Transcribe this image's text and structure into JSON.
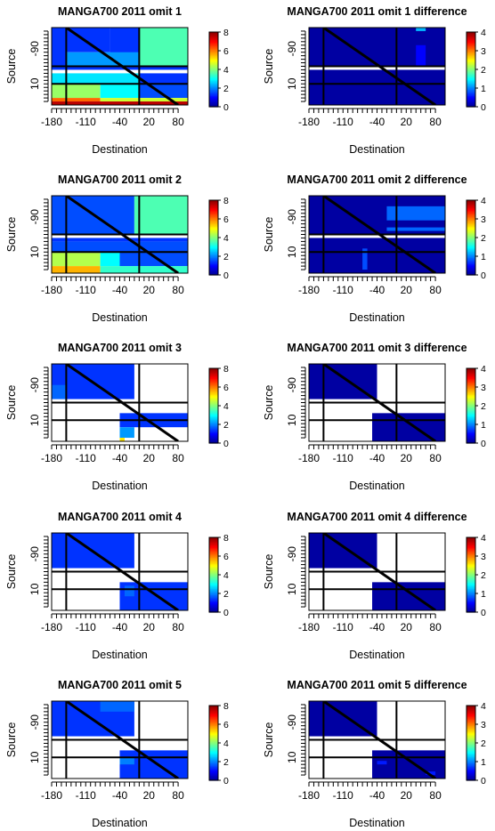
{
  "colorbar_colors": [
    "#00008b",
    "#0000ff",
    "#0080ff",
    "#00ffff",
    "#80ff80",
    "#ffff00",
    "#ff8000",
    "#ff0000",
    "#8b0000"
  ],
  "chart_data": [
    {
      "type": "heatmap",
      "title": "MANGA700 2011 omit 1",
      "xlabel": "Destination",
      "ylabel": "Source",
      "xticks": [
        "-180",
        "-110",
        "-40",
        "20",
        "80"
      ],
      "yticks": [
        "-90",
        "10"
      ],
      "colorbar": {
        "ticks": [
          "0",
          "2",
          "4",
          "6",
          "8"
        ],
        "range": [
          0,
          8
        ]
      },
      "lines": {
        "vertical_x": [
          -150,
          0
        ],
        "horizontal_y": [
          -40,
          10
        ],
        "diagonal": true
      },
      "cells": [
        {
          "x0": -180,
          "x1": -150,
          "y0": -150,
          "y1": -40,
          "v": 1.4
        },
        {
          "x0": -150,
          "x1": -60,
          "y0": -150,
          "y1": -80,
          "v": 1.4
        },
        {
          "x0": -60,
          "x1": 0,
          "y0": -150,
          "y1": -70,
          "v": 1.4
        },
        {
          "x0": 0,
          "x1": 100,
          "y0": -150,
          "y1": -40,
          "v": 3.6
        },
        {
          "x0": -150,
          "x1": 0,
          "y0": -80,
          "y1": -40,
          "v": 2.2
        },
        {
          "x0": -180,
          "x1": 100,
          "y0": -40,
          "y1": -30,
          "v": 1.4
        },
        {
          "x0": -180,
          "x1": 0,
          "y0": -20,
          "y1": 10,
          "v": 2.8
        },
        {
          "x0": 0,
          "x1": 100,
          "y0": -20,
          "y1": 10,
          "v": 1.4
        },
        {
          "x0": -180,
          "x1": -80,
          "y0": 10,
          "y1": 50,
          "v": 4.2
        },
        {
          "x0": -80,
          "x1": 0,
          "y0": 10,
          "y1": 50,
          "v": 3.0
        },
        {
          "x0": 0,
          "x1": 100,
          "y0": 10,
          "y1": 50,
          "v": 1.6
        },
        {
          "x0": -180,
          "x1": -80,
          "y0": 50,
          "y1": 60,
          "v": 6.2
        },
        {
          "x0": -80,
          "x1": 100,
          "y0": 50,
          "y1": 60,
          "v": 4.6
        },
        {
          "x0": -180,
          "x1": 100,
          "y0": 60,
          "y1": 70,
          "v": 7.6
        }
      ]
    },
    {
      "type": "heatmap",
      "title": "MANGA700 2011 omit 1 difference",
      "xlabel": "Destination",
      "ylabel": "Source",
      "xticks": [
        "-180",
        "-110",
        "-40",
        "20",
        "80"
      ],
      "yticks": [
        "-90",
        "10"
      ],
      "colorbar": {
        "ticks": [
          "0",
          "1",
          "2",
          "3",
          "4"
        ],
        "range": [
          0,
          4
        ]
      },
      "lines": {
        "vertical_x": [
          -150,
          0
        ],
        "horizontal_y": [
          -40,
          10
        ],
        "diagonal": true
      },
      "cells": [
        {
          "x0": -180,
          "x1": 100,
          "y0": -150,
          "y1": -40,
          "v": 0.1
        },
        {
          "x0": 40,
          "x1": 60,
          "y0": -150,
          "y1": -140,
          "v": 1.2
        },
        {
          "x0": 40,
          "x1": 60,
          "y0": -100,
          "y1": -40,
          "v": 0.5
        },
        {
          "x0": -180,
          "x1": 100,
          "y0": -30,
          "y1": 70,
          "v": 0.1
        }
      ]
    },
    {
      "type": "heatmap",
      "title": "MANGA700 2011 omit 2",
      "xlabel": "Destination",
      "ylabel": "Source",
      "xticks": [
        "-180",
        "-110",
        "-40",
        "20",
        "80"
      ],
      "yticks": [
        "-90",
        "10"
      ],
      "colorbar": {
        "ticks": [
          "0",
          "2",
          "4",
          "6",
          "8"
        ],
        "range": [
          0,
          8
        ]
      },
      "lines": {
        "vertical_x": [
          -150,
          0
        ],
        "horizontal_y": [
          -40,
          10
        ],
        "diagonal": true
      },
      "cells": [
        {
          "x0": -180,
          "x1": -10,
          "y0": -150,
          "y1": -40,
          "v": 1.6
        },
        {
          "x0": -10,
          "x1": 100,
          "y0": -150,
          "y1": -40,
          "v": 3.6
        },
        {
          "x0": -180,
          "x1": 100,
          "y0": -30,
          "y1": -20,
          "v": 1.4
        },
        {
          "x0": -180,
          "x1": 100,
          "y0": -20,
          "y1": 10,
          "v": 1.6
        },
        {
          "x0": -180,
          "x1": -80,
          "y0": 10,
          "y1": 50,
          "v": 4.4
        },
        {
          "x0": -80,
          "x1": -40,
          "y0": 10,
          "y1": 50,
          "v": 3.0
        },
        {
          "x0": -40,
          "x1": 100,
          "y0": 10,
          "y1": 50,
          "v": 1.6
        },
        {
          "x0": -180,
          "x1": -80,
          "y0": 50,
          "y1": 70,
          "v": 5.6
        },
        {
          "x0": -80,
          "x1": 100,
          "y0": 50,
          "y1": 70,
          "v": 3.4
        }
      ]
    },
    {
      "type": "heatmap",
      "title": "MANGA700 2011 omit 2 difference",
      "xlabel": "Destination",
      "ylabel": "Source",
      "xticks": [
        "-180",
        "-110",
        "-40",
        "20",
        "80"
      ],
      "yticks": [
        "-90",
        "10"
      ],
      "colorbar": {
        "ticks": [
          "0",
          "1",
          "2",
          "3",
          "4"
        ],
        "range": [
          0,
          4
        ]
      },
      "lines": {
        "vertical_x": [
          -150,
          0
        ],
        "horizontal_y": [
          -40,
          10
        ],
        "diagonal": true
      },
      "cells": [
        {
          "x0": -180,
          "x1": 100,
          "y0": -150,
          "y1": -40,
          "v": 0.1
        },
        {
          "x0": -20,
          "x1": 100,
          "y0": -120,
          "y1": -80,
          "v": 0.9
        },
        {
          "x0": -20,
          "x1": 100,
          "y0": -60,
          "y1": -50,
          "v": 0.9
        },
        {
          "x0": -180,
          "x1": 100,
          "y0": -30,
          "y1": 70,
          "v": 0.1
        },
        {
          "x0": -70,
          "x1": -60,
          "y0": 0,
          "y1": 60,
          "v": 0.8
        }
      ]
    },
    {
      "type": "heatmap",
      "title": "MANGA700 2011 omit 3",
      "xlabel": "Destination",
      "ylabel": "Source",
      "xticks": [
        "-180",
        "-110",
        "-40",
        "20",
        "80"
      ],
      "yticks": [
        "-90",
        "10"
      ],
      "colorbar": {
        "ticks": [
          "0",
          "2",
          "4",
          "6",
          "8"
        ],
        "range": [
          0,
          8
        ]
      },
      "lines": {
        "vertical_x": [
          -150,
          0
        ],
        "horizontal_y": [
          -40,
          10
        ],
        "diagonal": true
      },
      "cells": [
        {
          "x0": -180,
          "x1": -10,
          "y0": -150,
          "y1": -50,
          "v": 1.4
        },
        {
          "x0": -180,
          "x1": -150,
          "y0": -90,
          "y1": -50,
          "v": 1.8
        },
        {
          "x0": -40,
          "x1": 100,
          "y0": -10,
          "y1": 30,
          "v": 1.4
        },
        {
          "x0": -40,
          "x1": -10,
          "y0": 30,
          "y1": 60,
          "v": 2.2
        },
        {
          "x0": -40,
          "x1": -30,
          "y0": 60,
          "y1": 70,
          "v": 5.2
        }
      ]
    },
    {
      "type": "heatmap",
      "title": "MANGA700 2011 omit 3 difference",
      "xlabel": "Destination",
      "ylabel": "Source",
      "xticks": [
        "-180",
        "-110",
        "-40",
        "20",
        "80"
      ],
      "yticks": [
        "-90",
        "10"
      ],
      "colorbar": {
        "ticks": [
          "0",
          "1",
          "2",
          "3",
          "4"
        ],
        "range": [
          0,
          4
        ]
      },
      "lines": {
        "vertical_x": [
          -150,
          0
        ],
        "horizontal_y": [
          -40,
          10
        ],
        "diagonal": true
      },
      "cells": [
        {
          "x0": -180,
          "x1": -40,
          "y0": -150,
          "y1": -50,
          "v": 0.1
        },
        {
          "x0": -50,
          "x1": 100,
          "y0": -10,
          "y1": 70,
          "v": 0.1
        }
      ]
    },
    {
      "type": "heatmap",
      "title": "MANGA700 2011 omit 4",
      "xlabel": "Destination",
      "ylabel": "Source",
      "xticks": [
        "-180",
        "-110",
        "-40",
        "20",
        "80"
      ],
      "yticks": [
        "-90",
        "10"
      ],
      "colorbar": {
        "ticks": [
          "0",
          "2",
          "4",
          "6",
          "8"
        ],
        "range": [
          0,
          8
        ]
      },
      "lines": {
        "vertical_x": [
          -150,
          0
        ],
        "horizontal_y": [
          -40,
          10
        ],
        "diagonal": true
      },
      "cells": [
        {
          "x0": -180,
          "x1": -10,
          "y0": -150,
          "y1": -50,
          "v": 1.4
        },
        {
          "x0": -40,
          "x1": 100,
          "y0": -10,
          "y1": 70,
          "v": 1.4
        },
        {
          "x0": -30,
          "x1": -10,
          "y0": 0,
          "y1": 30,
          "v": 1.8
        }
      ]
    },
    {
      "type": "heatmap",
      "title": "MANGA700 2011 omit 4 difference",
      "xlabel": "Destination",
      "ylabel": "Source",
      "xticks": [
        "-180",
        "-110",
        "-40",
        "20",
        "80"
      ],
      "yticks": [
        "-90",
        "10"
      ],
      "colorbar": {
        "ticks": [
          "0",
          "1",
          "2",
          "3",
          "4"
        ],
        "range": [
          0,
          4
        ]
      },
      "lines": {
        "vertical_x": [
          -150,
          0
        ],
        "horizontal_y": [
          -40,
          10
        ],
        "diagonal": true
      },
      "cells": [
        {
          "x0": -180,
          "x1": -40,
          "y0": -150,
          "y1": -50,
          "v": 0.1
        },
        {
          "x0": -50,
          "x1": 100,
          "y0": -10,
          "y1": 70,
          "v": 0.1
        }
      ]
    },
    {
      "type": "heatmap",
      "title": "MANGA700 2011 omit 5",
      "xlabel": "Destination",
      "ylabel": "Source",
      "xticks": [
        "-180",
        "-110",
        "-40",
        "20",
        "80"
      ],
      "yticks": [
        "-90",
        "10"
      ],
      "colorbar": {
        "ticks": [
          "0",
          "2",
          "4",
          "6",
          "8"
        ],
        "range": [
          0,
          8
        ]
      },
      "lines": {
        "vertical_x": [
          -150,
          0
        ],
        "horizontal_y": [
          -40,
          10
        ],
        "diagonal": true
      },
      "cells": [
        {
          "x0": -180,
          "x1": -10,
          "y0": -150,
          "y1": -50,
          "v": 1.4
        },
        {
          "x0": -80,
          "x1": -10,
          "y0": -150,
          "y1": -120,
          "v": 1.8
        },
        {
          "x0": -40,
          "x1": 100,
          "y0": -10,
          "y1": 70,
          "v": 1.4
        },
        {
          "x0": -40,
          "x1": -10,
          "y0": 10,
          "y1": 30,
          "v": 2.0
        }
      ]
    },
    {
      "type": "heatmap",
      "title": "MANGA700 2011 omit 5 difference",
      "xlabel": "Destination",
      "ylabel": "Source",
      "xticks": [
        "-180",
        "-110",
        "-40",
        "20",
        "80"
      ],
      "yticks": [
        "-90",
        "10"
      ],
      "colorbar": {
        "ticks": [
          "0",
          "1",
          "2",
          "3",
          "4"
        ],
        "range": [
          0,
          4
        ]
      },
      "lines": {
        "vertical_x": [
          -150,
          0
        ],
        "horizontal_y": [
          -40,
          10
        ],
        "diagonal": true
      },
      "cells": [
        {
          "x0": -180,
          "x1": -40,
          "y0": -150,
          "y1": -50,
          "v": 0.1
        },
        {
          "x0": -50,
          "x1": 100,
          "y0": -10,
          "y1": 70,
          "v": 0.1
        },
        {
          "x0": -40,
          "x1": -20,
          "y0": 20,
          "y1": 30,
          "v": 0.6
        },
        {
          "x0": 60,
          "x1": 80,
          "y0": 50,
          "y1": 60,
          "v": 0.6
        }
      ]
    }
  ]
}
